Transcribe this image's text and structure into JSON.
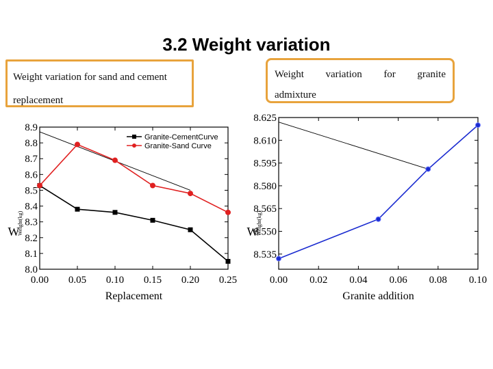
{
  "slide": {
    "title": "3.2 Weight variation",
    "left_caption": "Weight variation for sand and cement replacement",
    "left_caption_line1": "Weight variation for sand and cement",
    "left_caption_line2": "replacement",
    "right_caption_words": [
      "Weight",
      "variation",
      "for",
      "granite"
    ],
    "right_caption_line2": "admixture"
  },
  "chart_data": [
    {
      "type": "line",
      "xlabel": "Replacement",
      "ylabel": "W",
      "ylabel_fragment": "Weight(kg)",
      "x": [
        0.0,
        0.05,
        0.1,
        0.15,
        0.2,
        0.25
      ],
      "xlim": [
        0.0,
        0.25
      ],
      "ylim": [
        8.0,
        8.9
      ],
      "xticks": [
        "0.00",
        "0.05",
        "0.10",
        "0.15",
        "0.20",
        "0.25"
      ],
      "yticks": [
        "8.0",
        "8.1",
        "8.2",
        "8.3",
        "8.4",
        "8.5",
        "8.6",
        "8.7",
        "8.8",
        "8.9"
      ],
      "legend_position": "top-right",
      "grid": false,
      "series": [
        {
          "name": "Granite-CementCurve",
          "color": "#000000",
          "marker": "square",
          "values": [
            8.53,
            8.38,
            8.36,
            8.31,
            8.25,
            8.05
          ]
        },
        {
          "name": "Granite-Sand Curve",
          "color": "#e02020",
          "marker": "circle",
          "values": [
            8.53,
            8.79,
            8.69,
            8.53,
            8.48,
            8.36
          ]
        }
      ],
      "annotations": [
        {
          "type": "trend-line",
          "from": [
            0.0,
            8.87
          ],
          "to": [
            0.2,
            8.5
          ],
          "color": "#000000"
        }
      ]
    },
    {
      "type": "line",
      "xlabel": "Granite addition",
      "ylabel": "W",
      "ylabel_fragment": "Weight(kg)",
      "x": [
        0.0,
        0.05,
        0.075,
        0.1
      ],
      "xlim": [
        0.0,
        0.1
      ],
      "ylim": [
        8.525,
        8.625
      ],
      "xticks": [
        "0.00",
        "0.02",
        "0.04",
        "0.06",
        "0.08",
        "0.10"
      ],
      "yticks": [
        "8.535",
        "8.550",
        "8.565",
        "8.580",
        "8.595",
        "8.610",
        "8.625"
      ],
      "grid": false,
      "series": [
        {
          "color": "#1a2bd0",
          "marker": "circle",
          "values": [
            8.532,
            8.558,
            8.591,
            8.62
          ]
        }
      ],
      "annotations": [
        {
          "type": "trend-line",
          "from": [
            0.0,
            8.622
          ],
          "to": [
            0.075,
            8.591
          ],
          "color": "#000000"
        }
      ]
    }
  ]
}
